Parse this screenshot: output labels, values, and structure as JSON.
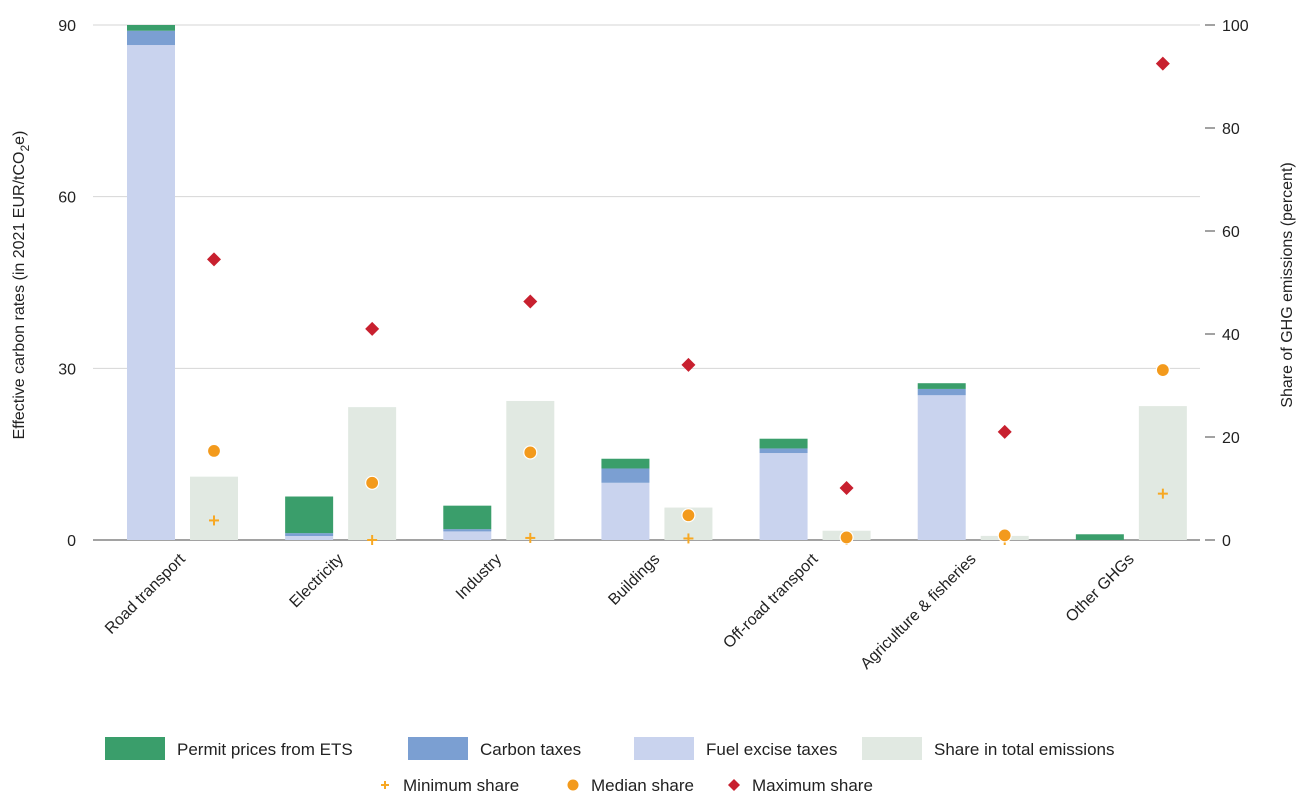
{
  "chart_data": {
    "type": "bar",
    "categories": [
      "Road transport",
      "Electricity",
      "Industry",
      "Buildings",
      "Off-road transport",
      "Agriculture & fisheries",
      "Other GHGs"
    ],
    "left_axis": {
      "label": "Effective carbon rates (in 2021 EUR/tCO2e)",
      "ylim": [
        0,
        90
      ],
      "ticks": [
        0,
        30,
        60,
        90
      ]
    },
    "right_axis": {
      "label": "Share of GHG emissions (percent)",
      "ylim": [
        0,
        100
      ],
      "ticks": [
        0,
        20,
        40,
        60,
        80,
        100
      ]
    },
    "stacked_series": [
      {
        "name": "Fuel excise taxes",
        "color": "#c9d3ee",
        "values": [
          86.5,
          0.7,
          1.5,
          10,
          15.2,
          25.3,
          0
        ]
      },
      {
        "name": "Carbon taxes",
        "color": "#7b9fd2",
        "values": [
          2.5,
          0.5,
          0.4,
          2.5,
          0.8,
          1.1,
          0
        ]
      },
      {
        "name": "Permit prices from ETS",
        "color": "#3a9e6b",
        "values": [
          1.0,
          6.4,
          4.1,
          1.7,
          1.7,
          1.0,
          1.0
        ]
      }
    ],
    "share_series": {
      "name": "Share in total emissions",
      "color": "#e1e9e2",
      "values": [
        12.3,
        25.8,
        27.0,
        6.3,
        1.8,
        0.8,
        26.0
      ]
    },
    "marker_series": [
      {
        "name": "Minimum share",
        "marker": "plus",
        "color": "#f7a823",
        "values": [
          3.8,
          0,
          0.4,
          0.3,
          0,
          0,
          9.0
        ]
      },
      {
        "name": "Median share",
        "marker": "circle",
        "color": "#f39a1c",
        "values": [
          17.3,
          11.1,
          17.0,
          4.8,
          0.5,
          0.9,
          33.0
        ]
      },
      {
        "name": "Maximum share",
        "marker": "diamond",
        "color": "#c8202f",
        "values": [
          54.5,
          41.0,
          46.3,
          34.0,
          10.1,
          21.0,
          92.5
        ]
      }
    ],
    "grid": "horizontal",
    "legend_position": "bottom"
  },
  "legend": {
    "row1": [
      {
        "label": "Permit prices from ETS",
        "color": "#3a9e6b"
      },
      {
        "label": "Carbon taxes",
        "color": "#7b9fd2"
      },
      {
        "label": "Fuel excise taxes",
        "color": "#c9d3ee"
      },
      {
        "label": "Share in total emissions",
        "color": "#e1e9e2"
      }
    ],
    "row2": [
      {
        "label": "Minimum share",
        "marker": "plus",
        "color": "#f7a823"
      },
      {
        "label": "Median share",
        "marker": "circle",
        "color": "#f39a1c"
      },
      {
        "label": "Maximum share",
        "marker": "diamond",
        "color": "#c8202f"
      }
    ]
  }
}
